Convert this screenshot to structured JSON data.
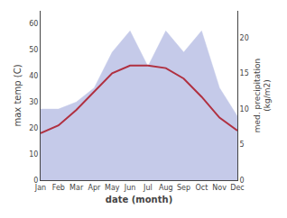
{
  "chart_data": {
    "type": "line",
    "x_label": "date (month)",
    "y_label": "max temp (C)",
    "y2_label": "med. precipitation\n(kg/m2)",
    "categories": [
      "Jan",
      "Feb",
      "Mar",
      "Apr",
      "May",
      "Jun",
      "Jul",
      "Aug",
      "Sep",
      "Oct",
      "Nov",
      "Dec"
    ],
    "series": [
      {
        "type": "area",
        "axis": "y2",
        "color": "#c5cae9",
        "values": [
          10,
          10,
          11,
          13,
          18,
          21,
          16,
          21,
          18,
          21,
          13,
          9
        ]
      },
      {
        "type": "line",
        "color": "#b03040",
        "values": [
          18,
          21,
          27,
          34,
          41,
          44,
          44,
          43,
          39,
          32,
          24,
          19
        ]
      }
    ],
    "ylim": [
      0,
      65
    ],
    "yticks": [
      0,
      10,
      20,
      30,
      40,
      50,
      60
    ],
    "y2lim": [
      0,
      23.83
    ],
    "y2ticks": [
      0,
      5,
      10,
      15,
      20
    ],
    "grid": false
  }
}
